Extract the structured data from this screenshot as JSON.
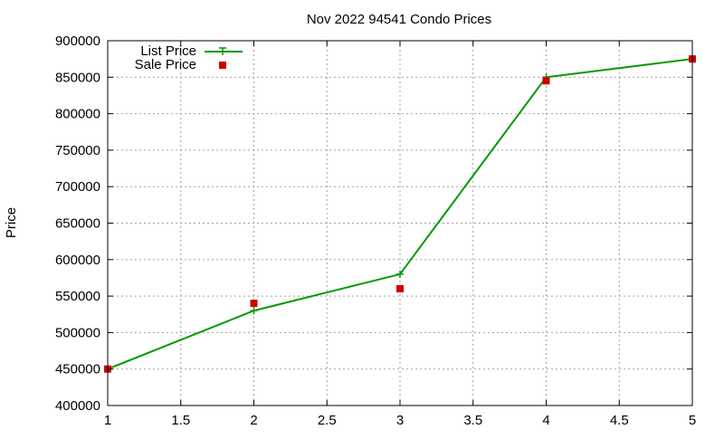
{
  "chart_data": {
    "type": "line",
    "title": "Nov 2022 94541 Condo Prices",
    "xlabel": "",
    "ylabel": "Price",
    "xlim": [
      1,
      5
    ],
    "ylim": [
      400000,
      900000
    ],
    "x_ticks": [
      "1",
      "1.5",
      "2",
      "2.5",
      "3",
      "3.5",
      "4",
      "4.5",
      "5"
    ],
    "y_ticks": [
      "400000",
      "450000",
      "500000",
      "550000",
      "600000",
      "650000",
      "700000",
      "750000",
      "800000",
      "850000",
      "900000"
    ],
    "grid": true,
    "legend_position": "top-left",
    "series": [
      {
        "name": "List Price",
        "style": "lines+points",
        "color": "#009900",
        "x": [
          1,
          2,
          3,
          4,
          5
        ],
        "y": [
          450000,
          530000,
          580000,
          850000,
          875000
        ]
      },
      {
        "name": "Sale Price",
        "style": "points",
        "color": "#cc0000",
        "x": [
          1,
          2,
          3,
          4,
          5
        ],
        "y": [
          450000,
          540000,
          560000,
          845000,
          875000
        ]
      }
    ]
  }
}
